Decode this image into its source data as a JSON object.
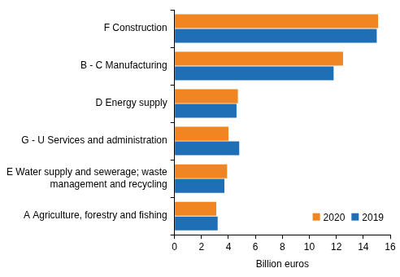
{
  "chart_data": {
    "type": "bar",
    "orientation": "horizontal",
    "x_label": "Billion euros",
    "categories": [
      "F Construction",
      "B - C Manufacturing",
      "D Energy supply",
      "G - U Services and administration",
      "E Water supply and sewerage; waste management and recycling",
      "A Agriculture, forestry and fishing"
    ],
    "series": [
      {
        "name": "2020",
        "color": "#f08522",
        "values": [
          15.1,
          12.5,
          4.7,
          4.0,
          3.9,
          3.1
        ]
      },
      {
        "name": "2019",
        "color": "#1f6fb6",
        "values": [
          15.0,
          11.8,
          4.6,
          4.8,
          3.7,
          3.2
        ]
      }
    ],
    "xlim": [
      0,
      16
    ],
    "xticks": [
      0,
      2,
      4,
      6,
      8,
      10,
      12,
      14,
      16
    ],
    "grid": false,
    "legend": "lower right"
  }
}
